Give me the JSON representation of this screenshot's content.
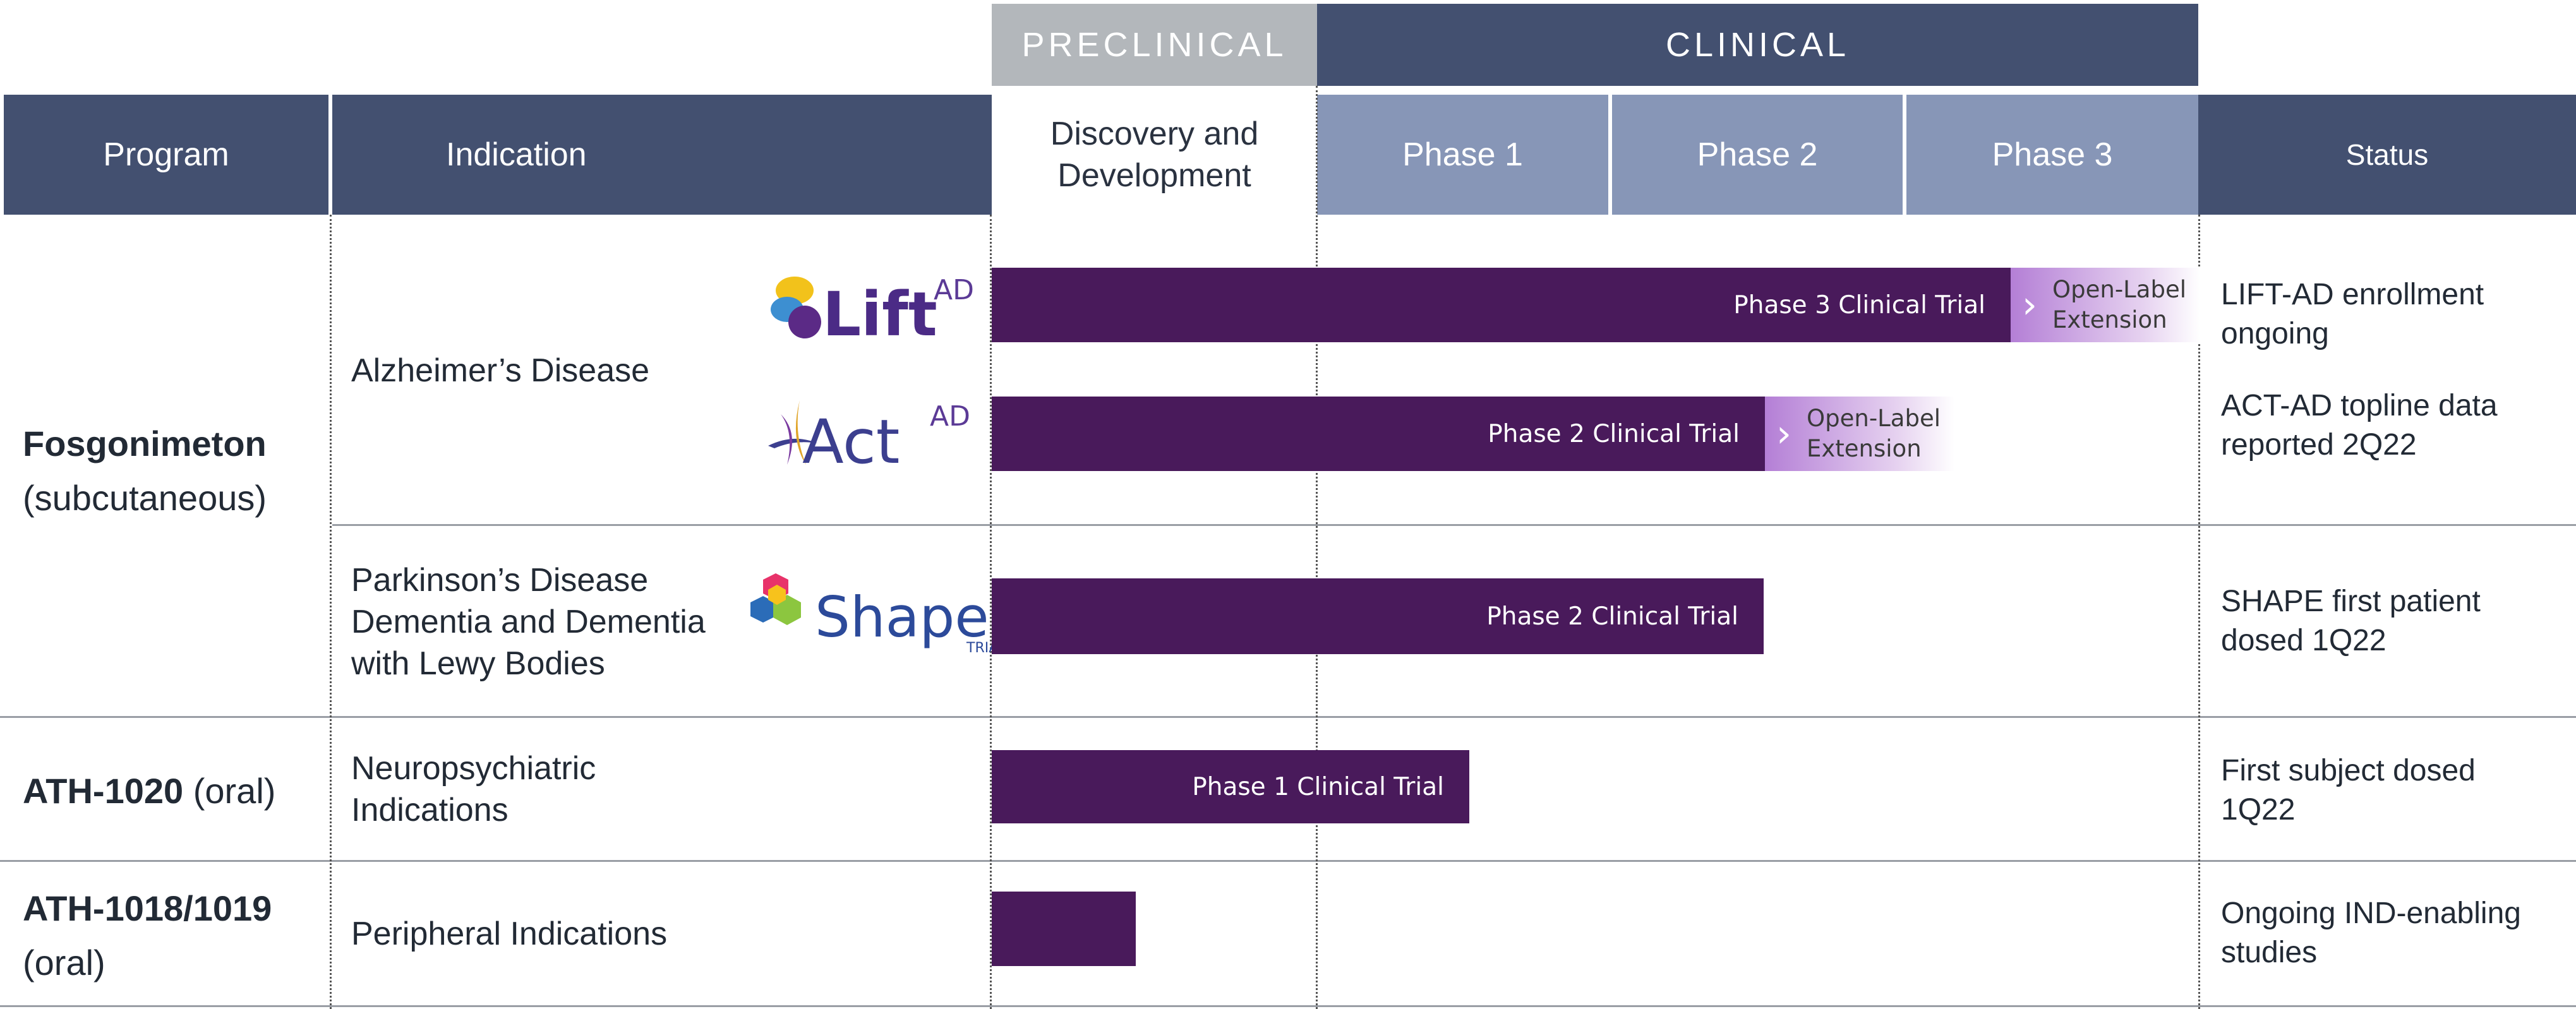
{
  "bands": {
    "preclinical": "PRECLINICAL",
    "clinical": "CLINICAL"
  },
  "headers": {
    "program": "Program",
    "indication": "Indication",
    "discovery_line1": "Discovery and",
    "discovery_line2": "Development",
    "phase1": "Phase 1",
    "phase2": "Phase 2",
    "phase3": "Phase 3",
    "status": "Status"
  },
  "programs": [
    {
      "name": "Fosgonimeton",
      "route": "(subcutaneous)"
    },
    {
      "name": "ATH-1020",
      "route": "(oral)"
    },
    {
      "name": "ATH-1018/1019",
      "route": "(oral)"
    }
  ],
  "indications": {
    "alzheimers": "Alzheimer’s Disease",
    "parkinsons_line1": "Parkinson’s Disease",
    "parkinsons_line2": "Dementia and Dementia",
    "parkinsons_line3": "with Lewy Bodies",
    "neuro_line1": "Neuropsychiatric",
    "neuro_line2": "Indications",
    "peripheral": "Peripheral Indications"
  },
  "logos": {
    "lift_main": "Lift",
    "lift_sup": "AD",
    "act_main": "Act",
    "act_sup": "AD",
    "shape_main": "Shape",
    "shape_sub": "TRIAL"
  },
  "trials": {
    "lift": {
      "label": "Phase 3 Clinical Trial",
      "extension_line1": "Open-Label",
      "extension_line2": "Extension"
    },
    "act": {
      "label": "Phase 2 Clinical Trial",
      "extension_line1": "Open-Label",
      "extension_line2": "Extension"
    },
    "shape": {
      "label": "Phase 2 Clinical Trial"
    },
    "ath1020": {
      "label": "Phase 1 Clinical Trial"
    },
    "ath1018": {
      "label": ""
    }
  },
  "status": {
    "lift_line1": "LIFT-AD enrollment",
    "lift_line2": "ongoing",
    "act_line1": "ACT-AD topline data",
    "act_line2": "reported 2Q22",
    "shape_line1": "SHAPE first patient",
    "shape_line2": "dosed 1Q22",
    "ath1020_line1": "First subject dosed",
    "ath1020_line2": "1Q22",
    "ath1018_line1": "Ongoing IND-enabling",
    "ath1018_line2": "studies"
  },
  "colors": {
    "header_dark": "#435070",
    "header_light": "#8796b7",
    "preclinical_band": "#b3b7bb",
    "bar": "#491a5b",
    "extension_start": "#b47fd6"
  }
}
